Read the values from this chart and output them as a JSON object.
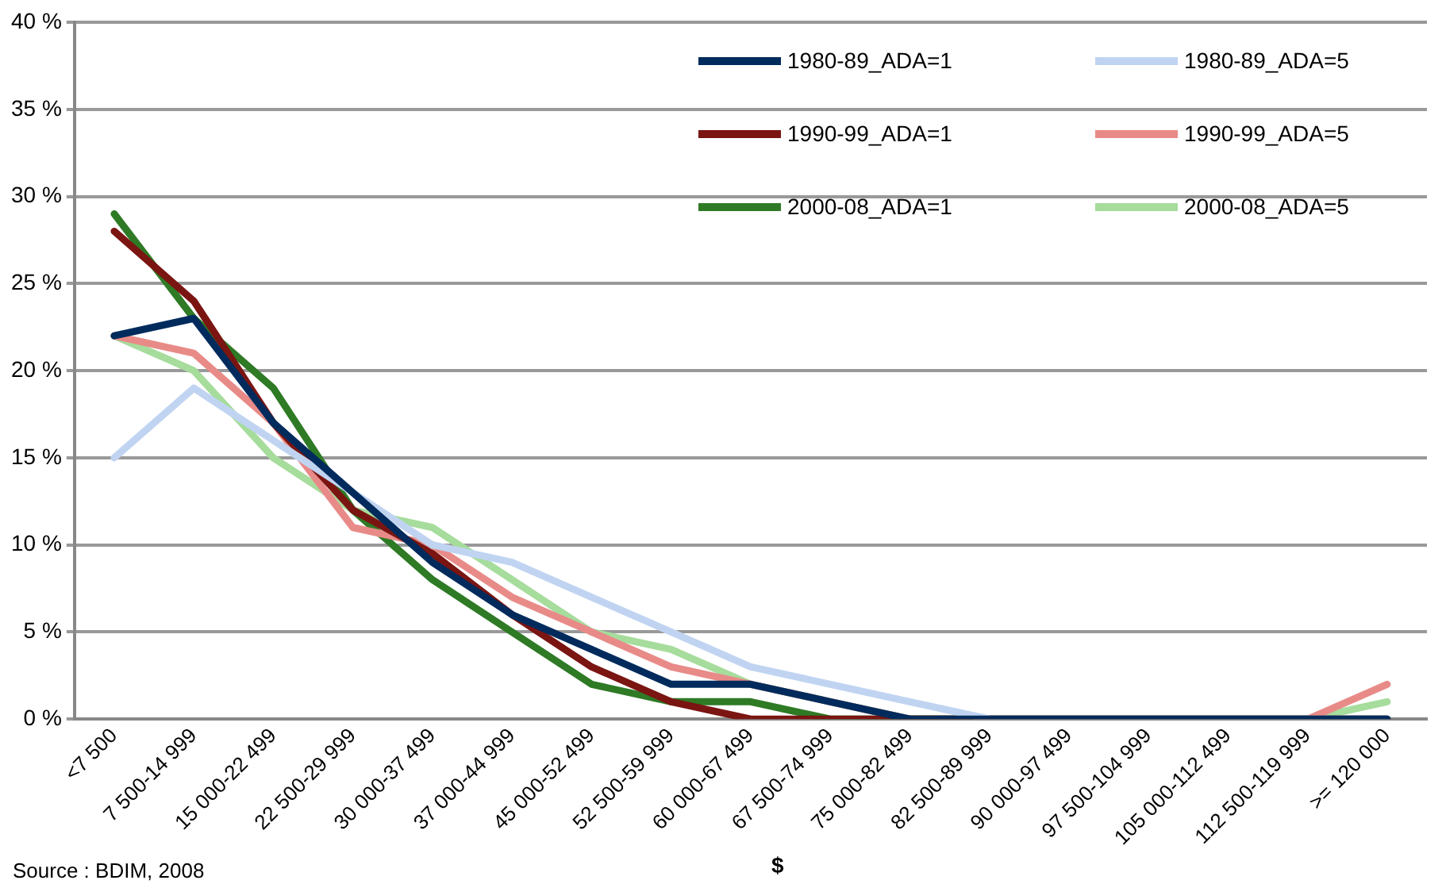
{
  "chart_data": {
    "type": "line",
    "xlabel": "$",
    "annotations": [
      "Source : BDIM, 2008"
    ],
    "categories": [
      "<7 500",
      "7 500-14 999",
      "15 000-22 499",
      "22 500-29 999",
      "30 000-37 499",
      "37 000-44 999",
      "45 000-52 499",
      "52 500-59 999",
      "60 000-67 499",
      "67 500-74 999",
      "75 000-82 499",
      "82 500-89 999",
      "90 000-97 499",
      "97 500-104 999",
      "105 000-112 499",
      "112 500-119 999",
      ">= 120 000"
    ],
    "series": [
      {
        "name": "1980-89_ADA=1",
        "color": "#002b5c",
        "values": [
          22,
          23,
          17,
          13,
          9,
          6,
          4,
          2,
          2,
          1,
          0,
          0,
          0,
          0,
          0,
          0,
          0
        ]
      },
      {
        "name": "1980-89_ADA=5",
        "color": "#c0d4f2",
        "values": [
          15,
          19,
          16,
          13,
          10,
          9,
          7,
          5,
          3,
          2,
          1,
          0,
          0,
          0,
          0,
          0,
          0
        ]
      },
      {
        "name": "1990-99_ADA=1",
        "color": "#7a1512",
        "values": [
          28,
          24,
          17,
          12,
          9.5,
          6,
          3,
          1,
          0,
          0,
          0,
          0,
          0,
          0,
          0,
          0,
          0
        ]
      },
      {
        "name": "1990-99_ADA=5",
        "color": "#e88b88",
        "values": [
          22,
          21,
          17,
          11,
          10,
          7,
          5,
          3,
          2,
          1,
          0,
          0,
          0,
          0,
          0,
          0,
          2
        ]
      },
      {
        "name": "2000-08_ADA=1",
        "color": "#2e7a25",
        "values": [
          29,
          23,
          19,
          12,
          8,
          5,
          2,
          1,
          1,
          0,
          0,
          0,
          0,
          0,
          0,
          0,
          0
        ]
      },
      {
        "name": "2000-08_ADA=5",
        "color": "#a6dc9c",
        "values": [
          22,
          20,
          15,
          12,
          11,
          8,
          5,
          4,
          2,
          1,
          0,
          0,
          0,
          0,
          0,
          0,
          1
        ]
      }
    ],
    "ylim": [
      0,
      40
    ],
    "yticks": [
      {
        "value": 0,
        "label": "0 %"
      },
      {
        "value": 5,
        "label": "5 %"
      },
      {
        "value": 10,
        "label": "10 %"
      },
      {
        "value": 15,
        "label": "15 %"
      },
      {
        "value": 20,
        "label": "20 %"
      },
      {
        "value": 25,
        "label": "25 %"
      },
      {
        "value": 30,
        "label": "30 %"
      },
      {
        "value": 35,
        "label": "35 %"
      },
      {
        "value": 40,
        "label": "40 %"
      }
    ],
    "grid": "y",
    "legend": "top right",
    "marker": "none",
    "line_style": "solid"
  }
}
